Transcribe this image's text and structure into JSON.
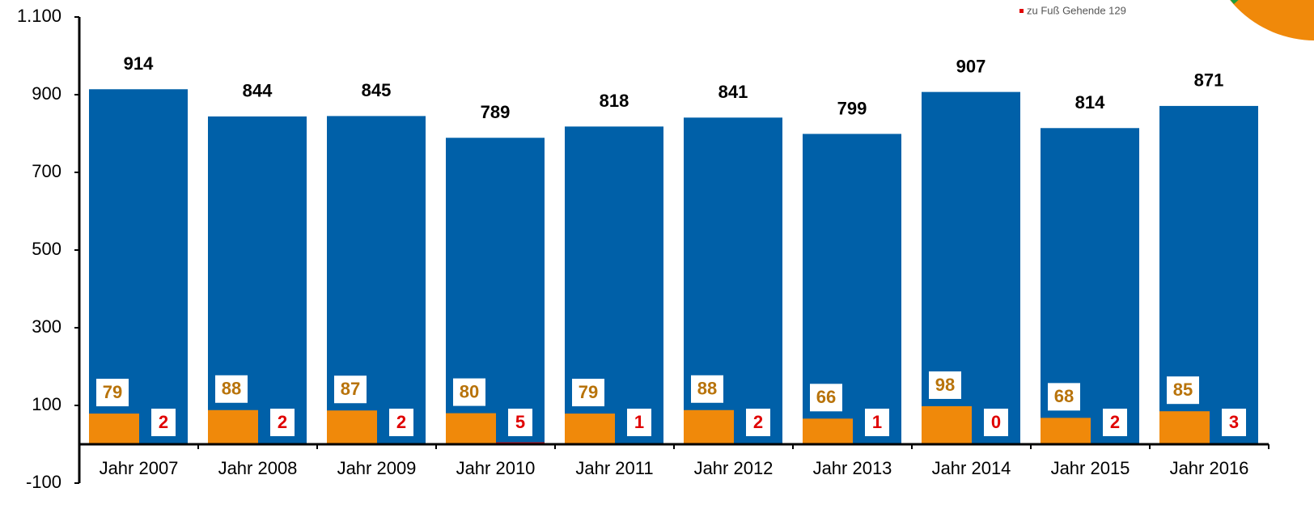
{
  "chart_data": {
    "type": "bar",
    "annotation": "zu Fuß Gehende 129",
    "categories": [
      "Jahr 2007",
      "Jahr 2008",
      "Jahr 2009",
      "Jahr 2010",
      "Jahr 2011",
      "Jahr 2012",
      "Jahr 2013",
      "Jahr 2014",
      "Jahr 2015",
      "Jahr 2016"
    ],
    "series": [
      {
        "color": "#0060a8",
        "values": [
          914,
          844,
          845,
          789,
          818,
          841,
          799,
          907,
          814,
          871
        ]
      },
      {
        "color": "#f0890a",
        "values": [
          79,
          88,
          87,
          80,
          79,
          88,
          66,
          98,
          68,
          85
        ]
      },
      {
        "color": "#e00000",
        "values": [
          2,
          2,
          2,
          5,
          1,
          2,
          1,
          0,
          2,
          3
        ]
      }
    ],
    "ylim": [
      -100,
      1100
    ],
    "yticks": [
      -100,
      100,
      300,
      500,
      700,
      900,
      {
        "value": 1100,
        "label": "1.100"
      }
    ],
    "grid": false
  }
}
